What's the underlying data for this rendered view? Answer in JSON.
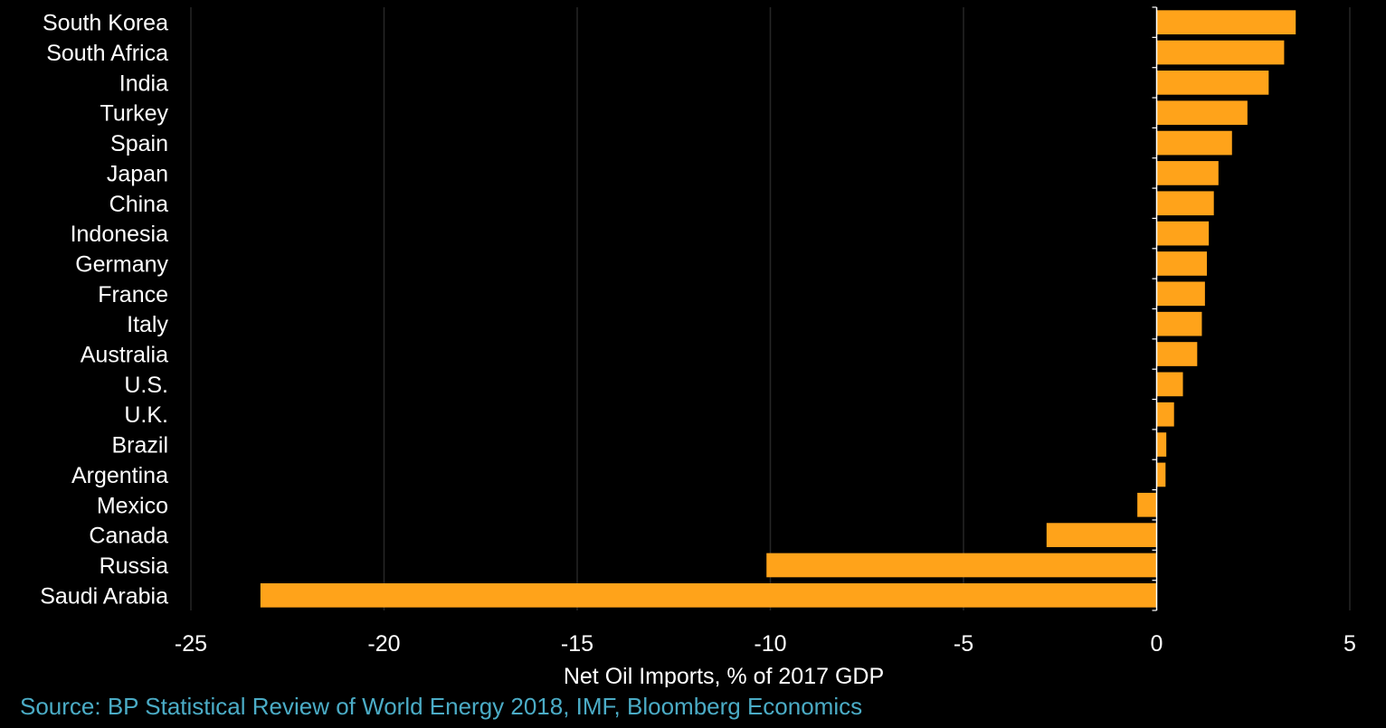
{
  "chart_data": {
    "type": "bar",
    "orientation": "horizontal",
    "categories": [
      "South Korea",
      "South Africa",
      "India",
      "Turkey",
      "Spain",
      "Japan",
      "China",
      "Indonesia",
      "Germany",
      "France",
      "Italy",
      "Australia",
      "U.S.",
      "U.K.",
      "Brazil",
      "Argentina",
      "Mexico",
      "Canada",
      "Russia",
      "Saudi Arabia"
    ],
    "values": [
      3.6,
      3.3,
      2.9,
      2.35,
      1.95,
      1.6,
      1.48,
      1.35,
      1.3,
      1.25,
      1.17,
      1.05,
      0.68,
      0.45,
      0.25,
      0.23,
      -0.5,
      -2.85,
      -10.1,
      -23.2
    ],
    "xlabel": "Net Oil Imports, % of 2017 GDP",
    "ylabel": "",
    "xlim": [
      -25,
      5
    ],
    "ticks": [
      -25,
      -20,
      -15,
      -10,
      -5,
      0,
      5
    ],
    "tick_labels": [
      "-25",
      "-20",
      "-15",
      "-10",
      "-5",
      "0",
      "5"
    ],
    "grid": true,
    "bar_color": "#FFA31A",
    "gridline_color": "#262626",
    "axis_color": "#FFFFFF"
  },
  "source": {
    "text": "Source: BP Statistical Review of World Energy 2018, IMF, Bloomberg Economics",
    "color": "#4BACC6"
  }
}
